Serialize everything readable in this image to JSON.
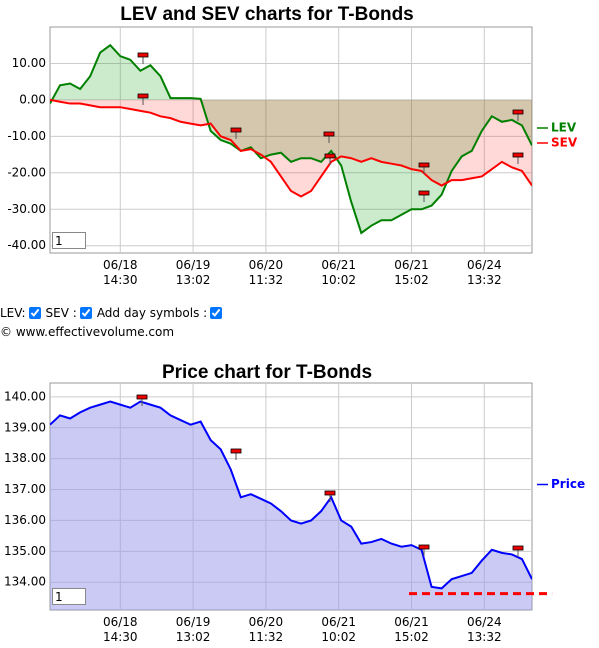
{
  "chart_data": [
    {
      "type": "area",
      "title": "LEV and SEV charts for T-Bonds",
      "x": [
        0,
        2,
        4,
        6,
        8,
        10,
        12,
        14,
        16,
        18,
        20,
        22,
        24,
        26,
        28,
        30,
        32,
        34,
        36,
        38,
        40,
        42,
        44,
        46,
        48,
        50,
        52,
        54,
        56,
        58,
        60,
        62,
        64,
        66,
        68,
        70,
        72,
        74,
        76,
        78,
        80,
        82,
        84,
        86,
        88,
        90,
        92,
        94,
        96
      ],
      "series": [
        {
          "name": "LEV",
          "color": "#008000",
          "fill": "rgba(0,150,0,0.2)",
          "values": [
            -1,
            4,
            4.5,
            3,
            6.5,
            13,
            15,
            12,
            11,
            8,
            9.5,
            6.5,
            0.5,
            0.5,
            0.5,
            0.3,
            -8.5,
            -11,
            -12,
            -14,
            -13,
            -16,
            -15,
            -14.5,
            -17,
            -16,
            -16,
            -17,
            -14,
            -18,
            -28,
            -36.5,
            -34.5,
            -33,
            -33,
            -31.5,
            -30,
            -30,
            -29,
            -26,
            -19.5,
            -15.5,
            -14,
            -8.5,
            -4.5,
            -6,
            -5.5,
            -7,
            -12.5
          ]
        },
        {
          "name": "SEV",
          "color": "#ff0000",
          "fill": "rgba(255,40,40,0.18)",
          "values": [
            0,
            -0.5,
            -1,
            -1,
            -1.5,
            -2,
            -2,
            -2,
            -2.5,
            -3,
            -3.5,
            -4.5,
            -5,
            -6,
            -6.5,
            -7,
            -6.5,
            -10,
            -11,
            -14,
            -13.5,
            -15,
            -17,
            -21,
            -25,
            -26.5,
            -25,
            -21,
            -17,
            -15.5,
            -16,
            -17,
            -16,
            -17,
            -17.5,
            -18,
            -19,
            -19.5,
            -22,
            -23.5,
            -22,
            -22,
            -21.5,
            -21,
            -19,
            -17,
            -18.5,
            -19.5,
            -23.5
          ]
        }
      ],
      "xlim": [
        0,
        96
      ],
      "xticks": [
        {
          "value": 14,
          "label": [
            "06/18",
            "14:30"
          ]
        },
        {
          "value": 28.5,
          "label": [
            "06/19",
            "13:02"
          ]
        },
        {
          "value": 43,
          "label": [
            "06/20",
            "11:32"
          ]
        },
        {
          "value": 57.5,
          "label": [
            "06/21",
            "10:02"
          ]
        },
        {
          "value": 72,
          "label": [
            "06/21",
            "15:02"
          ]
        },
        {
          "value": 86.5,
          "label": [
            "06/24",
            "13:32"
          ]
        }
      ],
      "ylim": [
        -42,
        20
      ],
      "yticks": [
        {
          "value": 10,
          "label": "10.00"
        },
        {
          "value": 0,
          "label": "0.00"
        },
        {
          "value": -10,
          "label": "-10.00"
        },
        {
          "value": -20,
          "label": "-20.00"
        },
        {
          "value": -30,
          "label": "-30.00"
        },
        {
          "value": -40,
          "label": "-40.00"
        }
      ],
      "grid": true,
      "legend": "right"
    },
    {
      "type": "area",
      "title": "Price chart for T-Bonds",
      "x": [
        0,
        2,
        4,
        6,
        8,
        10,
        12,
        14,
        16,
        18,
        20,
        22,
        24,
        26,
        28,
        30,
        32,
        34,
        36,
        38,
        40,
        42,
        44,
        46,
        48,
        50,
        52,
        54,
        56,
        58,
        60,
        62,
        64,
        66,
        68,
        70,
        72,
        74,
        76,
        78,
        80,
        82,
        84,
        86,
        88,
        90,
        92,
        94,
        96
      ],
      "series": [
        {
          "name": "Price",
          "color": "#0000ff",
          "fill": "rgba(150,150,235,0.5)",
          "values": [
            139.1,
            139.4,
            139.3,
            139.5,
            139.65,
            139.75,
            139.85,
            139.75,
            139.65,
            139.85,
            139.75,
            139.65,
            139.4,
            139.25,
            139.1,
            139.2,
            138.6,
            138.3,
            137.65,
            136.75,
            136.85,
            136.7,
            136.55,
            136.3,
            136.0,
            135.9,
            136.0,
            136.3,
            136.75,
            136.0,
            135.8,
            135.25,
            135.3,
            135.4,
            135.25,
            135.15,
            135.2,
            135.05,
            133.85,
            133.8,
            134.1,
            134.2,
            134.3,
            134.7,
            135.05,
            134.95,
            134.9,
            134.75,
            134.1
          ]
        }
      ],
      "hline": {
        "value": 133.63,
        "color": "#ff0000",
        "x": [
          71.5,
          100
        ]
      },
      "xlim": [
        0,
        96
      ],
      "xticks": [
        {
          "value": 14,
          "label": [
            "06/18",
            "14:30"
          ]
        },
        {
          "value": 28.5,
          "label": [
            "06/19",
            "13:02"
          ]
        },
        {
          "value": 43,
          "label": [
            "06/20",
            "11:32"
          ]
        },
        {
          "value": 57.5,
          "label": [
            "06/21",
            "10:02"
          ]
        },
        {
          "value": 72,
          "label": [
            "06/21",
            "15:02"
          ]
        },
        {
          "value": 86.5,
          "label": [
            "06/24",
            "13:32"
          ]
        }
      ],
      "ylim": [
        133.1,
        140.45
      ],
      "yticks": [
        {
          "value": 140,
          "label": "140.00"
        },
        {
          "value": 139,
          "label": "139.00"
        },
        {
          "value": 138,
          "label": "138.00"
        },
        {
          "value": 137,
          "label": "137.00"
        },
        {
          "value": 136,
          "label": "136.00"
        },
        {
          "value": 135,
          "label": "135.00"
        },
        {
          "value": 134,
          "label": "134.00"
        }
      ],
      "grid": true,
      "legend": "right"
    }
  ],
  "inputs": [
    "1",
    "1"
  ],
  "controls": [
    "LEV:",
    "SEV :",
    "Add day symbols :"
  ],
  "footer": "© www.effectivevolume.com"
}
